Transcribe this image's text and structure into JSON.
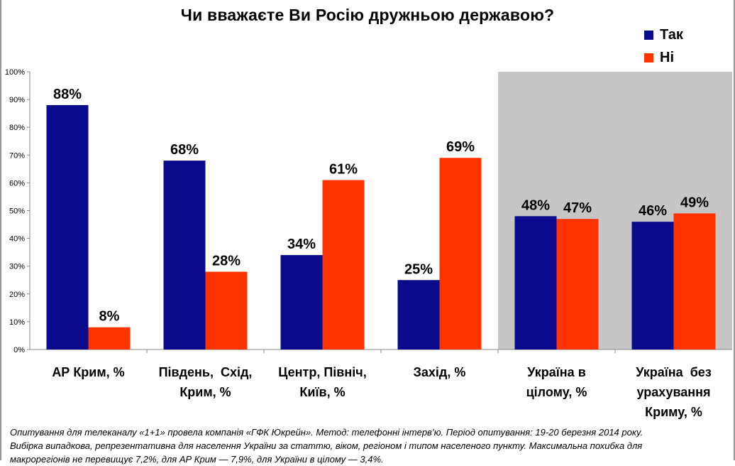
{
  "title": "Чи вважаєте Ви Росію дружньою державою?",
  "colors": {
    "yes": "#0a0a8c",
    "no": "#ff3300",
    "shade": "#c6c6c6",
    "axis": "#888888"
  },
  "chart_data": {
    "type": "bar",
    "title": "Чи вважаєте Ви Росію дружньою державою?",
    "categories": [
      [
        "АР Крим, %"
      ],
      [
        "Південь,  Схід,",
        "Крим, %"
      ],
      [
        "Центр, Північ,",
        "Київ, %"
      ],
      [
        "Захід, %"
      ],
      [
        "Україна в",
        "цілому, %"
      ],
      [
        "Україна  без",
        "урахування",
        "Криму, %"
      ]
    ],
    "series": [
      {
        "name": "Так",
        "color": "#0a0a8c",
        "values": [
          88,
          68,
          34,
          25,
          48,
          46
        ]
      },
      {
        "name": "Ні",
        "color": "#ff3300",
        "values": [
          8,
          28,
          61,
          69,
          47,
          49
        ]
      }
    ],
    "value_labels": {
      "Так": [
        "88%",
        "68%",
        "34%",
        "25%",
        "48%",
        "46%"
      ],
      "Ні": [
        "8%",
        "28%",
        "61%",
        "69%",
        "47%",
        "49%"
      ]
    },
    "y_ticks": [
      "0%",
      "10%",
      "20%",
      "30%",
      "40%",
      "50%",
      "60%",
      "70%",
      "80%",
      "90%",
      "100%"
    ],
    "ylim": [
      0,
      100
    ],
    "shaded_categories": [
      4,
      5
    ],
    "legend": {
      "position": "top-right",
      "items": [
        "Так",
        "Ні"
      ]
    },
    "xlabel": "",
    "ylabel": ""
  },
  "footnote": [
    "Опитування для телеканалу «1+1» провела компанія «ГФК Юкрейн». Метод: телефонні інтерв’ю. Період опитування: 19-20 березня 2014  року.",
    "Вибірка випадкова, репрезентативна для населення України за статтю, віком, регіоном і типом населеного пункту. Максимальна похибка для",
    "макрорегіонів не перевищує 7,2%, для АР Крим — 7,9%, для України в цілому — 3,4%."
  ]
}
